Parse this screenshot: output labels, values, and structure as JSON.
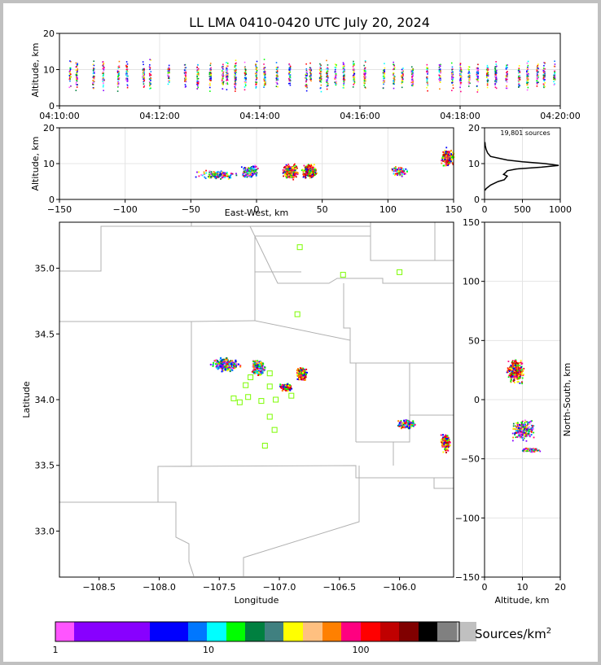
{
  "title": "LL LMA 0410-0420 UTC July 20, 2024",
  "colors": {
    "scale": [
      "#ff55ff",
      "#8800ff",
      "#8800ff",
      "#0000ff",
      "#0000ff",
      "#0077ff",
      "#00ffff",
      "#00ff00",
      "#008040",
      "#408080",
      "#ffff00",
      "#ffc080",
      "#ff8000",
      "#ff0080",
      "#ff0000",
      "#c00000",
      "#800000",
      "#000000",
      "#808080",
      "#c0c0c0",
      "#ffffff"
    ],
    "station": "#7cfc00",
    "state_lines": "#b0b0b0",
    "grid": "#e4e4e4"
  },
  "chart_data": [
    {
      "panel": "time-height",
      "type": "scatter",
      "ylabel": "Altitude, km",
      "ylim": [
        0,
        20
      ],
      "yticks": [
        "0",
        "10",
        "20"
      ],
      "xticks": [
        "04:10:00",
        "04:12:00",
        "04:14:00",
        "04:16:00",
        "04:18:00",
        "04:20:00"
      ],
      "xlim_sec": [
        0,
        600
      ],
      "flash_times_sec": [
        12,
        20,
        40,
        52,
        70,
        80,
        100,
        108,
        130,
        150,
        165,
        180,
        195,
        200,
        210,
        222,
        235,
        245,
        260,
        275,
        295,
        300,
        312,
        320,
        330,
        340,
        352,
        365,
        388,
        400,
        410,
        422,
        440,
        455,
        470,
        480,
        490,
        500,
        512,
        522,
        535,
        550,
        560,
        572,
        580,
        592
      ],
      "grid": true
    },
    {
      "panel": "east-west-height",
      "type": "heatmap",
      "xlabel": "East-West, km",
      "ylabel": "Altitude, km",
      "xlim": [
        -150,
        150
      ],
      "ylim": [
        0,
        20
      ],
      "xticks": [
        "−150",
        "−100",
        "−50",
        "0",
        "50",
        "100",
        "150"
      ],
      "yticks": [
        "0",
        "10",
        "20"
      ],
      "grid": true
    },
    {
      "panel": "altitude-histogram",
      "type": "line",
      "annotation": "19,801 sources",
      "xlim": [
        0,
        1000
      ],
      "ylim": [
        0,
        20
      ],
      "xticks": [
        "0",
        "500",
        "1000"
      ],
      "yticks": [
        "0",
        "10",
        "20"
      ],
      "profile": {
        "alt": [
          2.5,
          3,
          4,
          5,
          5.5,
          6,
          6.5,
          7,
          7.5,
          8,
          8.5,
          9,
          9.5,
          10,
          10.5,
          11,
          12,
          13,
          14,
          15,
          16
        ],
        "count": [
          5,
          20,
          80,
          180,
          260,
          280,
          300,
          250,
          280,
          300,
          420,
          750,
          980,
          800,
          500,
          300,
          80,
          40,
          20,
          10,
          5
        ]
      },
      "grid": true
    },
    {
      "panel": "plan-view",
      "type": "heatmap",
      "xlabel": "Longitude",
      "ylabel": "Latitude",
      "xlim": [
        -108.83,
        -105.55
      ],
      "ylim": [
        32.65,
        35.35
      ],
      "xticks": [
        "−108.5",
        "−108.0",
        "−107.5",
        "−107.0",
        "−106.5",
        "−106.0"
      ],
      "yticks": [
        "33.0",
        "33.5",
        "34.0",
        "34.5",
        "35.0"
      ],
      "stations": [
        {
          "lon": -106.83,
          "lat": 35.16
        },
        {
          "lon": -106.47,
          "lat": 34.95
        },
        {
          "lon": -106.0,
          "lat": 34.97
        },
        {
          "lon": -106.85,
          "lat": 34.65
        },
        {
          "lon": -107.08,
          "lat": 34.2
        },
        {
          "lon": -107.24,
          "lat": 34.17
        },
        {
          "lon": -107.28,
          "lat": 34.11
        },
        {
          "lon": -107.08,
          "lat": 34.1
        },
        {
          "lon": -107.26,
          "lat": 34.02
        },
        {
          "lon": -107.38,
          "lat": 34.01
        },
        {
          "lon": -107.33,
          "lat": 33.98
        },
        {
          "lon": -107.15,
          "lat": 33.99
        },
        {
          "lon": -107.03,
          "lat": 34.0
        },
        {
          "lon": -106.9,
          "lat": 34.03
        },
        {
          "lon": -107.08,
          "lat": 33.87
        },
        {
          "lon": -107.04,
          "lat": 33.77
        },
        {
          "lon": -107.12,
          "lat": 33.65
        }
      ]
    },
    {
      "panel": "north-south-height",
      "type": "heatmap",
      "xlabel": "Altitude, km",
      "ylabel": "North-South, km",
      "xlim": [
        0,
        20
      ],
      "ylim": [
        -150,
        150
      ],
      "xticks": [
        "0",
        "10",
        "20"
      ],
      "yticks": [
        "−150",
        "−100",
        "−50",
        "0",
        "50",
        "100",
        "150"
      ],
      "grid": true
    }
  ],
  "colorbar": {
    "label": "Sources/km",
    "label_exp": "2",
    "ticks": [
      "1",
      "10",
      "100"
    ]
  }
}
